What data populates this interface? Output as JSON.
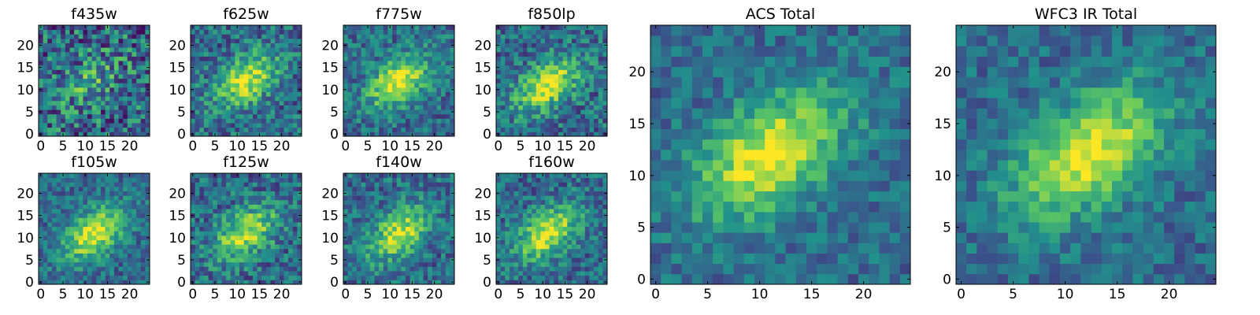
{
  "figure": {
    "colormap_stops": [
      "#440154",
      "#3b528b",
      "#21918c",
      "#5ec962",
      "#fde725"
    ],
    "frame_color": "#000000"
  },
  "chart_data": [
    {
      "type": "heatmap",
      "title": "f435w",
      "grid": false,
      "xlim": [
        0,
        24
      ],
      "ylim": [
        0,
        24
      ],
      "xticks": [
        "0",
        "5",
        "10",
        "15",
        "20"
      ],
      "yticks": [
        "0",
        "5",
        "10",
        "15",
        "20"
      ],
      "size": 25,
      "peak": {
        "x": 11,
        "y": 12
      },
      "peak_strength": 0.35,
      "noise": 0.65,
      "seed": 3
    },
    {
      "type": "heatmap",
      "title": "f625w",
      "grid": false,
      "xlim": [
        0,
        24
      ],
      "ylim": [
        0,
        24
      ],
      "xticks": [
        "0",
        "5",
        "10",
        "15",
        "20"
      ],
      "yticks": [
        "0",
        "5",
        "10",
        "15",
        "20"
      ],
      "size": 25,
      "peak": {
        "x": 12,
        "y": 12
      },
      "peak_strength": 0.9,
      "noise": 0.45,
      "seed": 7
    },
    {
      "type": "heatmap",
      "title": "f775w",
      "grid": false,
      "xlim": [
        0,
        24
      ],
      "ylim": [
        0,
        24
      ],
      "xticks": [
        "0",
        "5",
        "10",
        "15",
        "20"
      ],
      "yticks": [
        "0",
        "5",
        "10",
        "15",
        "20"
      ],
      "size": 25,
      "peak": {
        "x": 12,
        "y": 12
      },
      "peak_strength": 0.95,
      "noise": 0.4,
      "seed": 11
    },
    {
      "type": "heatmap",
      "title": "f850lp",
      "grid": false,
      "xlim": [
        0,
        24
      ],
      "ylim": [
        0,
        24
      ],
      "xticks": [
        "0",
        "5",
        "10",
        "15",
        "20"
      ],
      "yticks": [
        "0",
        "5",
        "10",
        "15",
        "20"
      ],
      "size": 25,
      "peak": {
        "x": 11,
        "y": 11
      },
      "peak_strength": 0.95,
      "noise": 0.45,
      "seed": 17
    },
    {
      "type": "heatmap",
      "title": "f105w",
      "grid": false,
      "xlim": [
        0,
        24
      ],
      "ylim": [
        0,
        24
      ],
      "xticks": [
        "0",
        "5",
        "10",
        "15",
        "20"
      ],
      "yticks": [
        "0",
        "5",
        "10",
        "15",
        "20"
      ],
      "size": 25,
      "peak": {
        "x": 12,
        "y": 11
      },
      "peak_strength": 0.95,
      "noise": 0.35,
      "seed": 23
    },
    {
      "type": "heatmap",
      "title": "f125w",
      "grid": false,
      "xlim": [
        0,
        24
      ],
      "ylim": [
        0,
        24
      ],
      "xticks": [
        "0",
        "5",
        "10",
        "15",
        "20"
      ],
      "yticks": [
        "0",
        "5",
        "10",
        "15",
        "20"
      ],
      "size": 25,
      "peak": {
        "x": 12,
        "y": 11
      },
      "peak_strength": 0.85,
      "noise": 0.45,
      "seed": 29
    },
    {
      "type": "heatmap",
      "title": "f140w",
      "grid": false,
      "xlim": [
        0,
        24
      ],
      "ylim": [
        0,
        24
      ],
      "xticks": [
        "0",
        "5",
        "10",
        "15",
        "20"
      ],
      "yticks": [
        "0",
        "5",
        "10",
        "15",
        "20"
      ],
      "size": 25,
      "peak": {
        "x": 12,
        "y": 11
      },
      "peak_strength": 0.85,
      "noise": 0.4,
      "seed": 31
    },
    {
      "type": "heatmap",
      "title": "f160w",
      "grid": false,
      "xlim": [
        0,
        24
      ],
      "ylim": [
        0,
        24
      ],
      "xticks": [
        "0",
        "5",
        "10",
        "15",
        "20"
      ],
      "yticks": [
        "0",
        "5",
        "10",
        "15",
        "20"
      ],
      "size": 25,
      "peak": {
        "x": 11,
        "y": 11
      },
      "peak_strength": 0.9,
      "noise": 0.4,
      "seed": 37
    },
    {
      "type": "heatmap",
      "title": "ACS Total",
      "grid": false,
      "xlim": [
        0,
        24
      ],
      "ylim": [
        0,
        24
      ],
      "xticks": [
        "0",
        "5",
        "10",
        "15",
        "20"
      ],
      "yticks": [
        "0",
        "5",
        "10",
        "15",
        "20"
      ],
      "size": 25,
      "peak": {
        "x": 11,
        "y": 12
      },
      "peak_strength": 1.0,
      "noise": 0.3,
      "seed": 41
    },
    {
      "type": "heatmap",
      "title": "WFC3 IR Total",
      "grid": false,
      "xlim": [
        0,
        24
      ],
      "ylim": [
        0,
        24
      ],
      "xticks": [
        "0",
        "5",
        "10",
        "15",
        "20"
      ],
      "yticks": [
        "0",
        "5",
        "10",
        "15",
        "20"
      ],
      "size": 25,
      "peak": {
        "x": 12,
        "y": 12
      },
      "peak_strength": 1.0,
      "noise": 0.3,
      "seed": 43
    }
  ]
}
